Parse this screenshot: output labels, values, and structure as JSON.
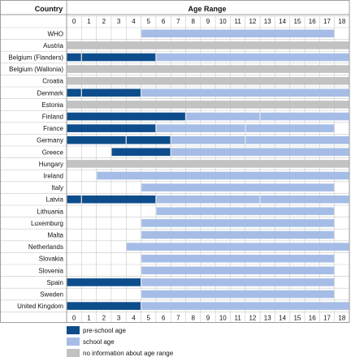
{
  "chart_data": {
    "type": "bar",
    "orientation": "horizontal-range",
    "row_header": "Country",
    "title": "Age Range",
    "x_ticks": [
      0,
      1,
      2,
      3,
      4,
      5,
      6,
      7,
      8,
      9,
      10,
      11,
      12,
      13,
      14,
      15,
      16,
      17,
      18
    ],
    "xlim": [
      0,
      19
    ],
    "grid": true,
    "legend_position": "bottom-left",
    "colors": {
      "pre-school": "#0e4d8c",
      "school": "#a5bde6",
      "no-info": "#c2c2c2"
    },
    "legend": [
      {
        "key": "pre-school",
        "label": "pre-school age"
      },
      {
        "key": "school",
        "label": "school age"
      },
      {
        "key": "no-info",
        "label": "no information about age range"
      }
    ],
    "rows": [
      {
        "country": "WHO",
        "segments": [
          {
            "type": "school",
            "start": 5,
            "end": 18
          }
        ]
      },
      {
        "country": "Austria",
        "segments": [
          {
            "type": "no-info",
            "start": 0,
            "end": 19
          }
        ]
      },
      {
        "country": "Belgium (Flanders)",
        "segments": [
          {
            "type": "pre-school",
            "start": 0,
            "end": 1
          },
          {
            "type": "pre-school",
            "start": 1,
            "end": 6
          },
          {
            "type": "school",
            "start": 6,
            "end": 19
          }
        ]
      },
      {
        "country": "Belgium (Wallonia)",
        "segments": [
          {
            "type": "no-info",
            "start": 0,
            "end": 19
          }
        ]
      },
      {
        "country": "Croatia",
        "segments": [
          {
            "type": "no-info",
            "start": 0,
            "end": 19
          }
        ]
      },
      {
        "country": "Denmark",
        "segments": [
          {
            "type": "pre-school",
            "start": 0,
            "end": 1
          },
          {
            "type": "pre-school",
            "start": 1,
            "end": 5
          },
          {
            "type": "school",
            "start": 5,
            "end": 19
          }
        ]
      },
      {
        "country": "Estonia",
        "segments": [
          {
            "type": "no-info",
            "start": 0,
            "end": 19
          }
        ]
      },
      {
        "country": "Finland",
        "segments": [
          {
            "type": "pre-school",
            "start": 0,
            "end": 8
          },
          {
            "type": "school",
            "start": 8,
            "end": 13
          },
          {
            "type": "school",
            "start": 13,
            "end": 19
          }
        ]
      },
      {
        "country": "France",
        "segments": [
          {
            "type": "pre-school",
            "start": 0,
            "end": 6
          },
          {
            "type": "school",
            "start": 6,
            "end": 12
          },
          {
            "type": "school",
            "start": 12,
            "end": 18
          }
        ]
      },
      {
        "country": "Germany",
        "segments": [
          {
            "type": "pre-school",
            "start": 0,
            "end": 4
          },
          {
            "type": "pre-school",
            "start": 4,
            "end": 7
          },
          {
            "type": "school",
            "start": 7,
            "end": 12
          },
          {
            "type": "school",
            "start": 12,
            "end": 19
          }
        ]
      },
      {
        "country": "Greece",
        "segments": [
          {
            "type": "pre-school",
            "start": 3,
            "end": 7
          },
          {
            "type": "school",
            "start": 7,
            "end": 19
          }
        ]
      },
      {
        "country": "Hungary",
        "segments": [
          {
            "type": "no-info",
            "start": 0,
            "end": 19
          }
        ]
      },
      {
        "country": "Ireland",
        "segments": [
          {
            "type": "school",
            "start": 2,
            "end": 19
          }
        ]
      },
      {
        "country": "Italy",
        "segments": [
          {
            "type": "school",
            "start": 5,
            "end": 18
          }
        ]
      },
      {
        "country": "Latvia",
        "segments": [
          {
            "type": "pre-school",
            "start": 0,
            "end": 1
          },
          {
            "type": "pre-school",
            "start": 1,
            "end": 6
          },
          {
            "type": "school",
            "start": 6,
            "end": 13
          },
          {
            "type": "school",
            "start": 13,
            "end": 19
          }
        ]
      },
      {
        "country": "Lithuania",
        "segments": [
          {
            "type": "school",
            "start": 6,
            "end": 18
          }
        ]
      },
      {
        "country": "Luxemburg",
        "segments": [
          {
            "type": "school",
            "start": 5,
            "end": 18
          }
        ]
      },
      {
        "country": "Malta",
        "segments": [
          {
            "type": "school",
            "start": 5,
            "end": 18
          }
        ]
      },
      {
        "country": "Netherlands",
        "segments": [
          {
            "type": "school",
            "start": 4,
            "end": 19
          }
        ]
      },
      {
        "country": "Slovakia",
        "segments": [
          {
            "type": "school",
            "start": 5,
            "end": 18
          }
        ]
      },
      {
        "country": "Slovenia",
        "segments": [
          {
            "type": "school",
            "start": 5,
            "end": 18
          }
        ]
      },
      {
        "country": "Spain",
        "segments": [
          {
            "type": "pre-school",
            "start": 0,
            "end": 5
          },
          {
            "type": "school",
            "start": 5,
            "end": 18
          }
        ]
      },
      {
        "country": "Sweden",
        "segments": [
          {
            "type": "school",
            "start": 5,
            "end": 18
          }
        ]
      },
      {
        "country": "United Kingdom",
        "segments": [
          {
            "type": "pre-school",
            "start": 0,
            "end": 5
          },
          {
            "type": "school",
            "start": 5,
            "end": 19
          }
        ]
      }
    ]
  }
}
